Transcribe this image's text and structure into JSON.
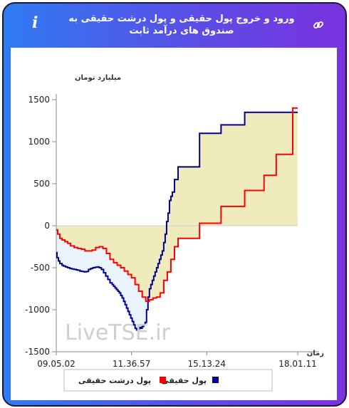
{
  "header": {
    "title": "ورود و خروج پول حقیقی و پول درشت حقیقی به صندوق های درآمد ثابت",
    "info_icon": "i"
  },
  "chart_data": {
    "type": "line",
    "title": "ورود و خروج پول حقیقی و پول درشت حقیقی به صندوق های درآمد ثابت",
    "xlabel": "زمان",
    "ylabel": "میلیارد تومان",
    "ylim": [
      -1500,
      1500
    ],
    "yticks": [
      -1500,
      -1000,
      -500,
      0,
      500,
      1000,
      1500
    ],
    "xlim": [
      "09.05.02",
      "18.01.11"
    ],
    "xtick_labels": [
      "09.05.02",
      "11.36.57",
      "15.13.24",
      "18.01.11"
    ],
    "grid": false,
    "legend_position": "bottom",
    "watermark": "LiveTSE.ir",
    "fill": {
      "positive_color": "#efebbd",
      "negative_color": "#eaf3f9"
    },
    "series": [
      {
        "name": "پول حقیقی",
        "color": "#00008b",
        "x": [
          0,
          1,
          3,
          5,
          8,
          10,
          13,
          16,
          19,
          22,
          25,
          28,
          30,
          33,
          36,
          39,
          42,
          45,
          48,
          51,
          54,
          57,
          60,
          63,
          66,
          69,
          72,
          75,
          78,
          80,
          82,
          84,
          86,
          88,
          90,
          92,
          94,
          96,
          98,
          100,
          102,
          104,
          106,
          108,
          110,
          112,
          114,
          116,
          118,
          120,
          122,
          124,
          126,
          128,
          130,
          132,
          134,
          136,
          138,
          140,
          142,
          144,
          146,
          148,
          150,
          152,
          154,
          156,
          158,
          160,
          162,
          165,
          170,
          200,
          230,
          263,
          290,
          307,
          330,
          337
        ],
        "y": [
          -320,
          -380,
          -420,
          -450,
          -470,
          -480,
          -490,
          -500,
          -510,
          -515,
          -520,
          -525,
          -530,
          -540,
          -545,
          -550,
          -545,
          -520,
          -510,
          -500,
          -495,
          -490,
          -500,
          -520,
          -560,
          -600,
          -640,
          -680,
          -700,
          -720,
          -740,
          -760,
          -780,
          -800,
          -830,
          -860,
          -900,
          -940,
          -980,
          -1020,
          -1060,
          -1100,
          -1140,
          -1180,
          -1220,
          -1240,
          -1230,
          -1210,
          -1220,
          -1200,
          -1180,
          -1150,
          -1000,
          -850,
          -750,
          -700,
          -650,
          -600,
          -550,
          -500,
          -450,
          -400,
          -350,
          -300,
          -200,
          -100,
          50,
          150,
          300,
          350,
          400,
          550,
          700,
          1100,
          1200,
          1350,
          1350,
          1350,
          1350,
          1350
        ],
        "x_note": "minutes since first tick"
      },
      {
        "name": "پول درشت حقیقی",
        "color": "#ff0000",
        "x": [
          0,
          2,
          5,
          8,
          12,
          16,
          20,
          25,
          30,
          35,
          40,
          45,
          50,
          55,
          60,
          65,
          70,
          75,
          80,
          85,
          90,
          95,
          100,
          105,
          110,
          115,
          120,
          125,
          130,
          135,
          140,
          145,
          150,
          155,
          160,
          165,
          170,
          200,
          230,
          263,
          290,
          307,
          330,
          337
        ],
        "y": [
          -50,
          -100,
          -150,
          -170,
          -190,
          -210,
          -240,
          -260,
          -270,
          -280,
          -300,
          -300,
          -290,
          -260,
          -250,
          -270,
          -330,
          -400,
          -440,
          -470,
          -500,
          -540,
          -580,
          -620,
          -700,
          -780,
          -850,
          -900,
          -880,
          -860,
          -850,
          -800,
          -650,
          -550,
          -400,
          -250,
          -150,
          30,
          230,
          420,
          600,
          850,
          1400,
          1400
        ]
      }
    ]
  }
}
